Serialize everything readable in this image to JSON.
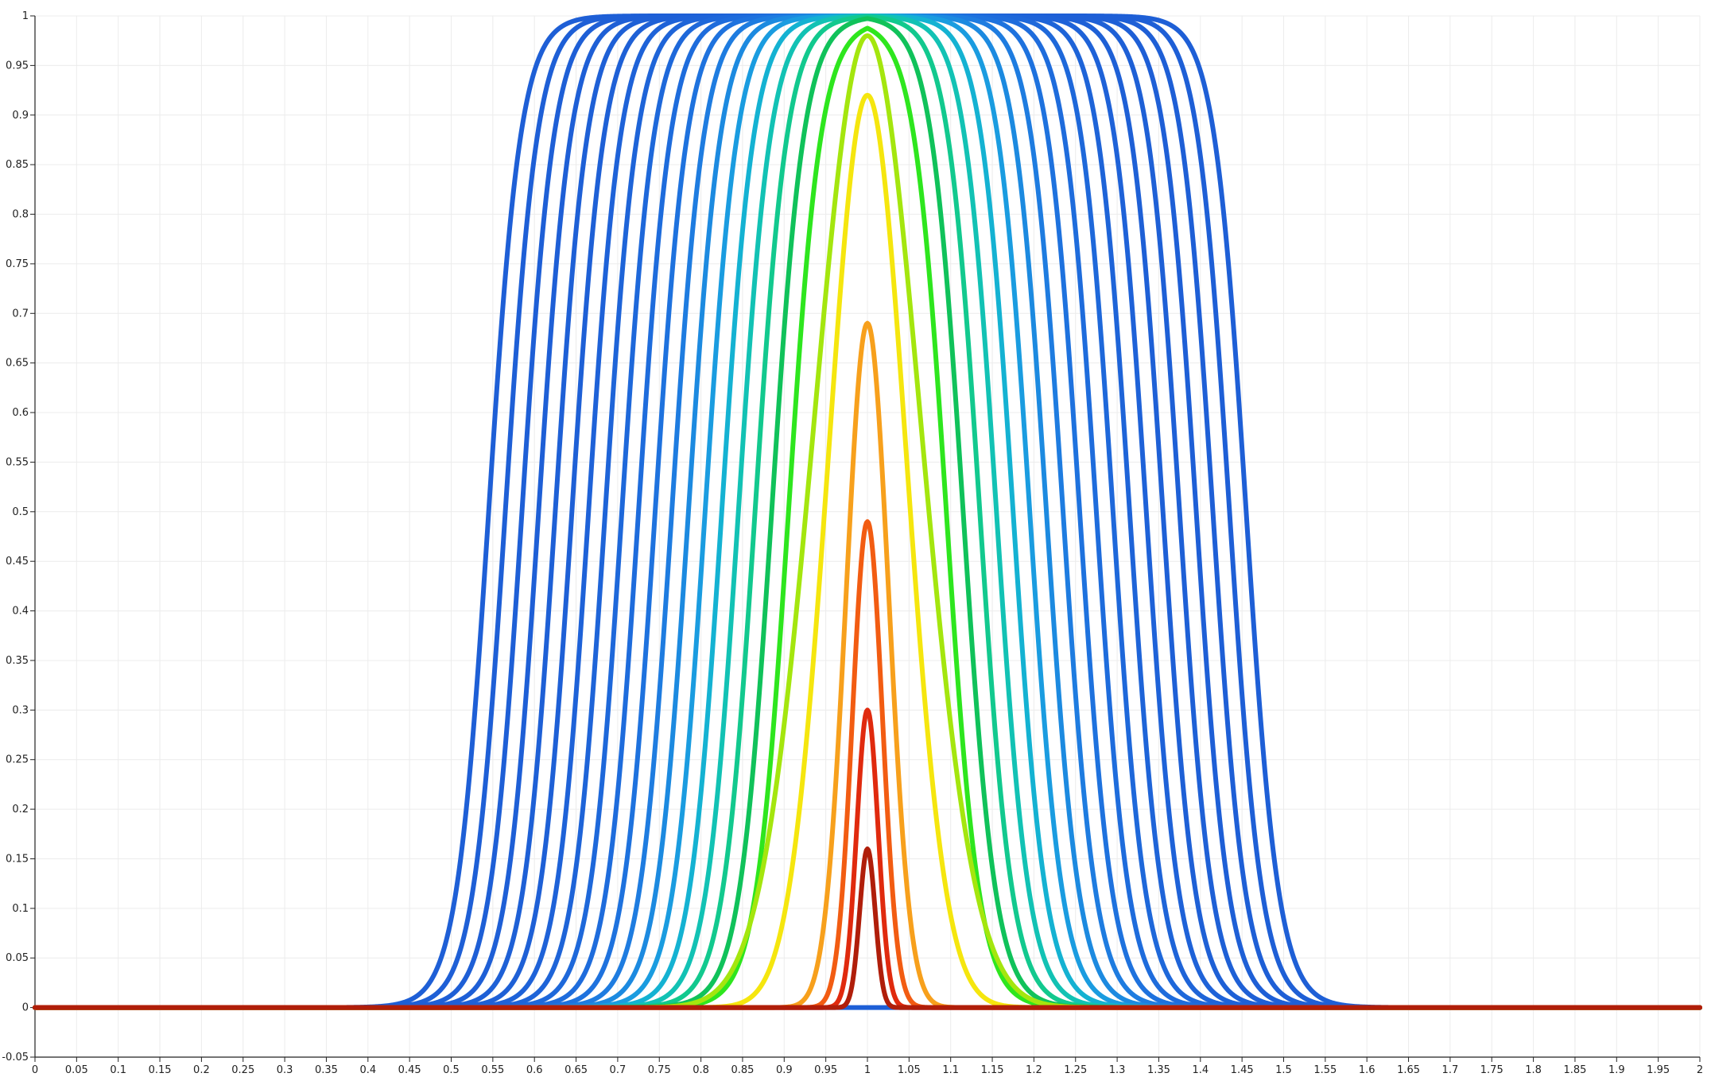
{
  "chart_data": {
    "type": "line",
    "title": "",
    "xlabel": "",
    "ylabel": "",
    "xlim": [
      0,
      2
    ],
    "ylim": [
      -0.05,
      1
    ],
    "grid": true,
    "legend": "none",
    "x_ticks": [
      "0",
      "0.05",
      "0.1",
      "0.15",
      "0.2",
      "0.25",
      "0.3",
      "0.35",
      "0.4",
      "0.45",
      "0.5",
      "0.55",
      "0.6",
      "0.65",
      "0.7",
      "0.75",
      "0.8",
      "0.85",
      "0.9",
      "0.95",
      "1",
      "1.05",
      "1.1",
      "1.15",
      "1.2",
      "1.25",
      "1.3",
      "1.35",
      "1.4",
      "1.45",
      "1.5",
      "1.55",
      "1.6",
      "1.65",
      "1.7",
      "1.75",
      "1.8",
      "1.85",
      "1.9",
      "1.95",
      "2"
    ],
    "y_ticks": [
      "-0.05",
      "0",
      "0.05",
      "0.1",
      "0.15",
      "0.2",
      "0.25",
      "0.3",
      "0.35",
      "0.4",
      "0.45",
      "0.5",
      "0.55",
      "0.6",
      "0.65",
      "0.7",
      "0.75",
      "0.8",
      "0.85",
      "0.9",
      "0.95",
      "1"
    ],
    "center_x": 1.0,
    "baseline_color": "#1e5fd6",
    "series": [
      {
        "peak": 0.16,
        "half_width_at_half_max": 0.011,
        "color": "#b01e0a"
      },
      {
        "peak": 0.3,
        "half_width_at_half_max": 0.015,
        "color": "#e02a0e"
      },
      {
        "peak": 0.49,
        "half_width_at_half_max": 0.021,
        "color": "#f25c12"
      },
      {
        "peak": 0.69,
        "half_width_at_half_max": 0.03,
        "color": "#f7a01c"
      },
      {
        "peak": 0.92,
        "half_width_at_half_max": 0.055,
        "color": "#f5e60e"
      },
      {
        "peak": 0.98,
        "half_width_at_half_max": 0.075,
        "color": "#a4e60e"
      },
      {
        "peak": 0.995,
        "half_width_at_half_max": 0.095,
        "color": "#2ee61e"
      },
      {
        "peak": 1.0,
        "half_width_at_half_max": 0.115,
        "color": "#10c25a"
      },
      {
        "peak": 1.0,
        "half_width_at_half_max": 0.135,
        "color": "#12c98e"
      },
      {
        "peak": 1.0,
        "half_width_at_half_max": 0.155,
        "color": "#12c2b4"
      },
      {
        "peak": 1.0,
        "half_width_at_half_max": 0.175,
        "color": "#14b2d2"
      },
      {
        "peak": 1.0,
        "half_width_at_half_max": 0.195,
        "color": "#1a9ce0"
      },
      {
        "peak": 1.0,
        "half_width_at_half_max": 0.215,
        "color": "#1c8ae0"
      },
      {
        "peak": 1.0,
        "half_width_at_half_max": 0.235,
        "color": "#1e7ce0"
      },
      {
        "peak": 1.0,
        "half_width_at_half_max": 0.255,
        "color": "#1e72de"
      },
      {
        "peak": 1.0,
        "half_width_at_half_max": 0.275,
        "color": "#1e6cdc"
      },
      {
        "peak": 1.0,
        "half_width_at_half_max": 0.295,
        "color": "#1e68da"
      },
      {
        "peak": 1.0,
        "half_width_at_half_max": 0.315,
        "color": "#1e64d8"
      },
      {
        "peak": 1.0,
        "half_width_at_half_max": 0.335,
        "color": "#1e62d8"
      },
      {
        "peak": 1.0,
        "half_width_at_half_max": 0.355,
        "color": "#1e60d6"
      },
      {
        "peak": 1.0,
        "half_width_at_half_max": 0.375,
        "color": "#1e60d6"
      },
      {
        "peak": 1.0,
        "half_width_at_half_max": 0.395,
        "color": "#1e5fd6"
      },
      {
        "peak": 1.0,
        "half_width_at_half_max": 0.415,
        "color": "#1e5fd6"
      },
      {
        "peak": 1.0,
        "half_width_at_half_max": 0.435,
        "color": "#1e5fd6"
      },
      {
        "peak": 1.0,
        "half_width_at_half_max": 0.455,
        "color": "#1e5fd6"
      }
    ]
  }
}
